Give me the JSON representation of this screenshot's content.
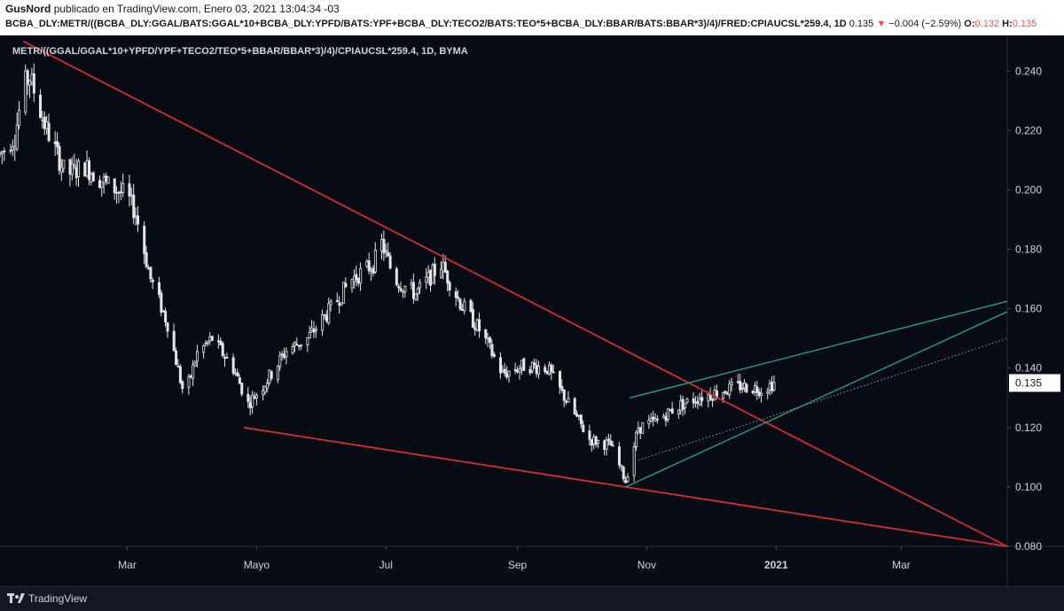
{
  "header": {
    "author": "GusNord",
    "published_text": "publicado en TradingView.com, Enero 03, 2021 13:04:34 -03",
    "symbol_full": "BCBA_DLY:METR/((BCBA_DLY:GGAL/BATS:GGAL*10+BCBA_DLY:YPFD/BATS:YPF+BCBA_DLY:TECO2/BATS:TEO*5+BCBA_DLY:BBAR/BATS:BBAR*3)/4)/FRED:CPIAUCSL*259.4, 1D",
    "last_value": "0.135",
    "change": "−0.004 (−2.59%)",
    "open_label": "O:",
    "open_value": "0.132",
    "high_label": "H:",
    "high_value": "0.135"
  },
  "chart_title": "METR/((GGAL/GGAL*10+YPFD/YPF+TECO2/TEO*5+BBAR/BBAR*3)/4)/CPIAUCSL*259.4, 1D, BYMA",
  "footer": {
    "brand": "TradingView"
  },
  "colors": {
    "background": "#070b14",
    "candle": "#e6e6e6",
    "red_lines": "#d32f2f",
    "teal_lines": "#26a69a",
    "dotted_line": "#9e9e9e",
    "price_tag": "#ffffff"
  },
  "chart_data": {
    "type": "candlestick",
    "title": "METR/((GGAL/GGAL*10+YPFD/YPF+TECO2/TEO*5+BBAR/BBAR*3)/4)/CPIAUCSL*259.4, 1D, BYMA",
    "x_range": [
      "2020-01-01",
      "2021-04-20"
    ],
    "y_range": [
      0.08,
      0.252
    ],
    "y_ticks": [
      "0.080",
      "0.100",
      "0.120",
      "0.140",
      "0.160",
      "0.180",
      "0.200",
      "0.220",
      "0.240"
    ],
    "x_ticks": [
      {
        "label": "Mar",
        "date": "2020-03-01"
      },
      {
        "label": "Mayo",
        "date": "2020-05-01"
      },
      {
        "label": "Jul",
        "date": "2020-07-01"
      },
      {
        "label": "Sep",
        "date": "2020-09-01"
      },
      {
        "label": "Nov",
        "date": "2020-11-01"
      },
      {
        "label": "2021",
        "date": "2021-01-01"
      },
      {
        "label": "Mar",
        "date": "2021-03-01"
      }
    ],
    "last_price": "0.135",
    "anchors": [
      [
        "2020-01-01",
        0.212
      ],
      [
        "2020-01-08",
        0.218
      ],
      [
        "2020-01-12",
        0.235
      ],
      [
        "2020-01-15",
        0.238
      ],
      [
        "2020-01-22",
        0.222
      ],
      [
        "2020-02-01",
        0.205
      ],
      [
        "2020-02-10",
        0.208
      ],
      [
        "2020-02-20",
        0.202
      ],
      [
        "2020-03-01",
        0.198
      ],
      [
        "2020-03-05",
        0.192
      ],
      [
        "2020-03-12",
        0.17
      ],
      [
        "2020-03-20",
        0.155
      ],
      [
        "2020-03-28",
        0.13
      ],
      [
        "2020-04-03",
        0.145
      ],
      [
        "2020-04-10",
        0.15
      ],
      [
        "2020-04-20",
        0.14
      ],
      [
        "2020-04-27",
        0.128
      ],
      [
        "2020-05-05",
        0.135
      ],
      [
        "2020-05-15",
        0.146
      ],
      [
        "2020-05-25",
        0.15
      ],
      [
        "2020-06-05",
        0.16
      ],
      [
        "2020-06-15",
        0.17
      ],
      [
        "2020-06-25",
        0.175
      ],
      [
        "2020-06-29",
        0.182
      ],
      [
        "2020-07-05",
        0.17
      ],
      [
        "2020-07-15",
        0.165
      ],
      [
        "2020-07-27",
        0.175
      ],
      [
        "2020-08-05",
        0.162
      ],
      [
        "2020-08-15",
        0.152
      ],
      [
        "2020-08-25",
        0.138
      ],
      [
        "2020-09-05",
        0.141
      ],
      [
        "2020-09-15",
        0.14
      ],
      [
        "2020-09-25",
        0.128
      ],
      [
        "2020-10-05",
        0.116
      ],
      [
        "2020-10-15",
        0.114
      ],
      [
        "2020-10-22",
        0.102
      ],
      [
        "2020-10-28",
        0.12
      ],
      [
        "2020-11-05",
        0.122
      ],
      [
        "2020-11-15",
        0.127
      ],
      [
        "2020-11-25",
        0.13
      ],
      [
        "2020-12-05",
        0.132
      ],
      [
        "2020-12-15",
        0.134
      ],
      [
        "2020-12-25",
        0.133
      ],
      [
        "2020-12-31",
        0.135
      ]
    ],
    "trendlines": [
      {
        "name": "red-upper",
        "color": "red",
        "from": [
          "2020-01-12",
          0.25
        ],
        "to": [
          "2021-04-20",
          0.08
        ]
      },
      {
        "name": "red-lower",
        "color": "red",
        "from": [
          "2020-04-25",
          0.12
        ],
        "to": [
          "2021-04-20",
          0.08
        ]
      },
      {
        "name": "teal-upper",
        "color": "teal",
        "from": [
          "2020-10-24",
          0.13
        ],
        "to": [
          "2021-04-20",
          0.1625
        ]
      },
      {
        "name": "teal-lower",
        "color": "teal",
        "from": [
          "2020-10-22",
          0.1
        ],
        "to": [
          "2021-04-20",
          0.159
        ]
      },
      {
        "name": "dotted",
        "color": "dotted",
        "from": [
          "2020-10-28",
          0.109
        ],
        "to": [
          "2021-04-20",
          0.15
        ]
      }
    ]
  }
}
